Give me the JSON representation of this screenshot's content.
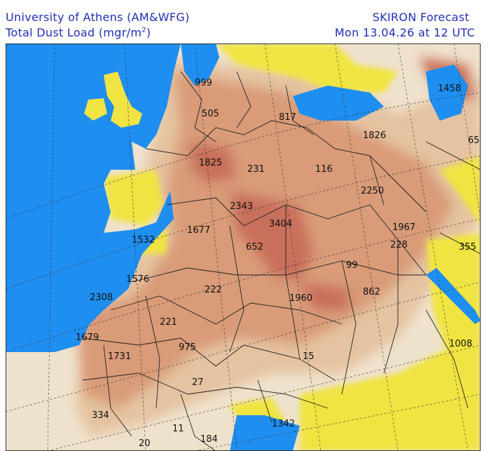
{
  "header": {
    "institution": "University of Athens (AM&WFG)",
    "variable_prefix": "Total Dust Load (mgr/m",
    "variable_sup": "2",
    "variable_suffix": ")",
    "model": "SKIRON Forecast",
    "valid_time": "Mon 13.04.26 at 12 UTC"
  },
  "colors": {
    "sea": "#1e8ef0",
    "land_clear": "#f0e442",
    "dust_low": "#efe2cc",
    "dust_mid": "#e5c3a0",
    "dust_high": "#d99b78",
    "dust_peak": "#c9705c",
    "border": "#222222"
  },
  "map": {
    "labels": [
      {
        "text": "999"
      },
      {
        "text": "505"
      },
      {
        "text": "817"
      },
      {
        "text": "1458"
      },
      {
        "text": "1826"
      },
      {
        "text": "65"
      },
      {
        "text": "1825"
      },
      {
        "text": "231"
      },
      {
        "text": "116"
      },
      {
        "text": "2250"
      },
      {
        "text": "2343"
      },
      {
        "text": "1677"
      },
      {
        "text": "3404"
      },
      {
        "text": "1532"
      },
      {
        "text": "652"
      },
      {
        "text": "1967"
      },
      {
        "text": "228"
      },
      {
        "text": "355"
      },
      {
        "text": "99"
      },
      {
        "text": "1576"
      },
      {
        "text": "222"
      },
      {
        "text": "862"
      },
      {
        "text": "2308"
      },
      {
        "text": "1960"
      },
      {
        "text": "221"
      },
      {
        "text": "1679"
      },
      {
        "text": "975"
      },
      {
        "text": "1008"
      },
      {
        "text": "1731"
      },
      {
        "text": "15"
      },
      {
        "text": "27"
      },
      {
        "text": "334"
      },
      {
        "text": "11"
      },
      {
        "text": "184"
      },
      {
        "text": "1342"
      },
      {
        "text": "20"
      }
    ]
  }
}
